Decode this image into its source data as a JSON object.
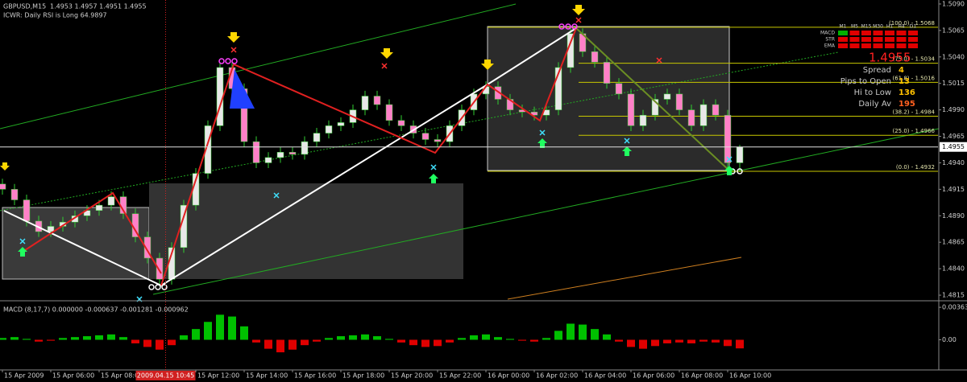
{
  "chart_data": [
    {
      "type": "candlestick",
      "title": "GBPUSD,M15",
      "ohlc_text": "1.4953 1.4957 1.4951 1.4955",
      "subtitle": "ICWR: Daily RSI is Long 64.9897",
      "x": [
        4,
        4.5,
        5,
        5.5,
        6,
        6.5,
        7,
        7.5,
        8,
        8.5,
        9,
        9.5,
        10,
        10.5,
        11,
        11.5,
        12,
        12.5,
        13,
        13.5,
        14,
        14.5,
        15,
        15.5,
        16,
        16.5,
        17,
        17.5,
        18,
        18.5,
        19,
        19.5,
        20,
        20.5,
        21,
        21.5,
        22,
        22.5,
        23,
        23.5,
        24,
        24.5,
        25,
        25.5,
        26,
        26.5,
        27,
        27.5,
        28,
        28.5,
        29,
        29.5,
        30,
        30.5,
        31,
        31.5,
        32,
        32.5,
        33,
        33.5,
        34,
        34.5
      ],
      "open": [
        1.492,
        1.4915,
        1.4905,
        1.4885,
        1.4875,
        1.488,
        1.4884,
        1.489,
        1.4895,
        1.49,
        1.4908,
        1.4892,
        1.487,
        1.485,
        1.483,
        1.486,
        1.49,
        1.493,
        1.4975,
        1.503,
        1.501,
        1.496,
        1.494,
        1.4945,
        1.495,
        1.4948,
        1.496,
        1.4968,
        1.4975,
        1.4978,
        1.499,
        1.5003,
        1.4995,
        1.498,
        1.4975,
        1.4968,
        1.4962,
        1.496,
        1.4975,
        1.499,
        1.5005,
        1.5012,
        1.5,
        1.499,
        1.4988,
        1.4985,
        1.499,
        1.503,
        1.5062,
        1.5045,
        1.5035,
        1.5015,
        1.5005,
        1.4975,
        1.4985,
        1.5,
        1.5005,
        1.499,
        1.4975,
        1.4995,
        1.4985,
        1.494
      ],
      "high": [
        1.4925,
        1.492,
        1.491,
        1.489,
        1.4885,
        1.4889,
        1.4895,
        1.49,
        1.4905,
        1.4913,
        1.4913,
        1.4897,
        1.4875,
        1.4855,
        1.4865,
        1.4905,
        1.4935,
        1.498,
        1.5035,
        1.5035,
        1.5015,
        1.4965,
        1.495,
        1.4955,
        1.4955,
        1.4965,
        1.4973,
        1.498,
        1.4983,
        1.4995,
        1.5008,
        1.5008,
        1.5,
        1.4985,
        1.498,
        1.4973,
        1.4967,
        1.498,
        1.4995,
        1.501,
        1.5017,
        1.5017,
        1.5005,
        1.4995,
        1.4993,
        1.4995,
        1.5035,
        1.5068,
        1.5067,
        1.505,
        1.504,
        1.502,
        1.501,
        1.499,
        1.5005,
        1.501,
        1.501,
        1.4995,
        1.5,
        1.5,
        1.499,
        1.4957
      ],
      "low": [
        1.491,
        1.49,
        1.488,
        1.487,
        1.487,
        1.4875,
        1.4879,
        1.4885,
        1.489,
        1.4895,
        1.4887,
        1.4865,
        1.4845,
        1.4825,
        1.4825,
        1.4855,
        1.4895,
        1.4925,
        1.497,
        1.5005,
        1.4955,
        1.4935,
        1.4935,
        1.494,
        1.4943,
        1.4943,
        1.4955,
        1.4963,
        1.497,
        1.4973,
        1.4985,
        1.499,
        1.4975,
        1.497,
        1.4963,
        1.4957,
        1.4955,
        1.4955,
        1.497,
        1.4985,
        1.5,
        1.4995,
        1.4985,
        1.4983,
        1.498,
        1.498,
        1.4985,
        1.5025,
        1.504,
        1.503,
        1.501,
        1.5,
        1.497,
        1.497,
        1.498,
        1.4995,
        1.4985,
        1.497,
        1.497,
        1.498,
        1.4932,
        1.4932
      ],
      "close": [
        1.4915,
        1.4905,
        1.4885,
        1.4875,
        1.488,
        1.4884,
        1.489,
        1.4895,
        1.49,
        1.4908,
        1.4892,
        1.487,
        1.485,
        1.483,
        1.486,
        1.49,
        1.493,
        1.4975,
        1.503,
        1.501,
        1.496,
        1.494,
        1.4945,
        1.495,
        1.4948,
        1.496,
        1.4968,
        1.4975,
        1.4978,
        1.499,
        1.5003,
        1.4995,
        1.498,
        1.4975,
        1.4968,
        1.4962,
        1.496,
        1.4975,
        1.499,
        1.5005,
        1.5012,
        1.5,
        1.499,
        1.4988,
        1.4985,
        1.499,
        1.503,
        1.5062,
        1.5045,
        1.5035,
        1.5015,
        1.5005,
        1.4975,
        1.4985,
        1.5,
        1.5005,
        1.499,
        1.4975,
        1.4995,
        1.4985,
        1.494,
        1.4955
      ],
      "up_color": "#e8e8e8",
      "down_color": "#ff80c8",
      "wick_color": "#32cd32",
      "xlim": [
        3.9,
        42.7
      ],
      "xticks": [
        {
          "value": 4,
          "label": "15 Apr 2009"
        },
        {
          "value": 6,
          "label": "15 Apr 06:00"
        },
        {
          "value": 8,
          "label": "15 Apr 08:00"
        },
        {
          "value": 12,
          "label": "15 Apr 12:00"
        },
        {
          "value": 14,
          "label": "15 Apr 14:00"
        },
        {
          "value": 16,
          "label": "15 Apr 16:00"
        },
        {
          "value": 18,
          "label": "15 Apr 18:00"
        },
        {
          "value": 20,
          "label": "15 Apr 20:00"
        },
        {
          "value": 22,
          "label": "15 Apr 22:00"
        },
        {
          "value": 24,
          "label": "16 Apr 00:00"
        },
        {
          "value": 26,
          "label": "16 Apr 02:00"
        },
        {
          "value": 28,
          "label": "16 Apr 04:00"
        },
        {
          "value": 30,
          "label": "16 Apr 06:00"
        },
        {
          "value": 32,
          "label": "16 Apr 08:00"
        },
        {
          "value": 34,
          "label": "16 Apr 10:00"
        }
      ],
      "cursor": {
        "value": 10.75,
        "label": "2009.04.15 10:45"
      },
      "ylim": [
        1.4812,
        1.5093
      ],
      "yticks": [
        {
          "value": 1.509,
          "label": "1.5090"
        },
        1.5065,
        {
          "value": 1.504,
          "label": "1.5040"
        },
        1.5015,
        {
          "value": 1.499,
          "label": "1.4990"
        },
        1.4965,
        {
          "value": 1.494,
          "label": "1.4940"
        },
        1.4915,
        {
          "value": 1.489,
          "label": "1.4890"
        },
        1.4865,
        {
          "value": 1.484,
          "label": "1.4840"
        },
        1.4815
      ],
      "current_price": 1.4955,
      "fib_levels": [
        {
          "value": 1.5068,
          "label": "(100.0) - 1.5068"
        },
        {
          "value": 1.5034,
          "label": "(75.0) - 1.5034"
        },
        {
          "value": 1.5016,
          "label": "(61.8) - 1.5016"
        },
        {
          "value": 1.4984,
          "label": "(38.2) - 1.4984"
        },
        {
          "value": 1.4966,
          "label": "(25.0) - 1.4966"
        },
        {
          "value": 1.4932,
          "label": "(0.0) - 1.4932"
        }
      ],
      "fib_color": "#c8c800"
    },
    {
      "type": "macd",
      "title": "MACD (8,17,7) 0.000000 -0.000637 -0.001281 -0.000962",
      "x": [
        4,
        4.5,
        5,
        5.5,
        6,
        6.5,
        7,
        7.5,
        8,
        8.5,
        9,
        9.5,
        10,
        10.5,
        11,
        11.5,
        12,
        12.5,
        13,
        13.5,
        14,
        14.5,
        15,
        15.5,
        16,
        16.5,
        17,
        17.5,
        18,
        18.5,
        19,
        19.5,
        20,
        20.5,
        21,
        21.5,
        22,
        22.5,
        23,
        23.5,
        24,
        24.5,
        25,
        25.5,
        26,
        26.5,
        27,
        27.5,
        28,
        28.5,
        29,
        29.5,
        30,
        30.5,
        31,
        31.5,
        32,
        32.5,
        33,
        33.5,
        34,
        34.5
      ],
      "values": [
        0.0002,
        0.0003,
        0.0001,
        -0.0002,
        -0.0001,
        0.0002,
        0.0003,
        0.0004,
        0.0005,
        0.0006,
        0.0003,
        -0.0004,
        -0.0008,
        -0.0011,
        -0.0006,
        0.0005,
        0.0012,
        0.002,
        0.0028,
        0.0026,
        0.0015,
        -0.0003,
        -0.001,
        -0.0014,
        -0.0011,
        -0.0006,
        -0.0002,
        0.0002,
        0.0004,
        0.0005,
        0.0006,
        0.0004,
        0.0001,
        -0.0003,
        -0.0006,
        -0.0008,
        -0.0007,
        -0.0003,
        0.0002,
        0.0005,
        0.0006,
        0.0003,
        0.0001,
        -0.0001,
        -0.0002,
        0.0002,
        0.001,
        0.0018,
        0.0017,
        0.0012,
        0.0006,
        -0.0002,
        -0.0008,
        -0.001,
        -0.0007,
        -0.0004,
        -0.0003,
        -0.0004,
        -0.0002,
        -0.0003,
        -0.0007,
        -0.00096
      ],
      "positive_color": "#00c000",
      "negative_color": "#e00000",
      "xlim": [
        3.9,
        42.7
      ],
      "ylim": [
        -0.0031,
        0.004
      ],
      "yticks": [
        0.00363,
        {
          "value": 0,
          "label": "0.00"
        }
      ]
    }
  ],
  "info_panel": {
    "signal_grid": {
      "columns": [
        "M1",
        "M5",
        "M15",
        "M30",
        "H1",
        "H4",
        "D1"
      ],
      "rows": [
        "MACD",
        "STR",
        "EMA"
      ],
      "colors": [
        [
          "#00b000",
          "#e00000",
          "#e00000",
          "#e00000",
          "#e00000",
          "#e00000",
          "#e00000"
        ],
        [
          "#e00000",
          "#e00000",
          "#e00000",
          "#e00000",
          "#e00000",
          "#e00000",
          "#e00000"
        ],
        [
          "#e00000",
          "#e00000",
          "#e00000",
          "#e00000",
          "#e00000",
          "#e00000",
          "#e00000"
        ]
      ]
    },
    "stats": [
      {
        "label": "Spread",
        "value": 4
      },
      {
        "label": "Pips to Open",
        "value": 13
      },
      {
        "label": "Hi to Low",
        "value": 136
      },
      {
        "label": "Daily Av",
        "value": 195
      }
    ]
  }
}
